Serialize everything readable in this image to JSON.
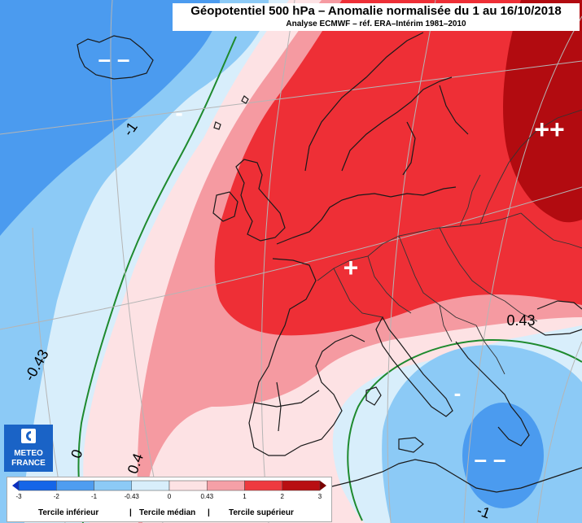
{
  "title": {
    "main": "Géopotentiel 500 hPa – Anomalie normalisée du 1 au 16/10/2018",
    "sub": "Analyse ECMWF – réf. ERA–Intérim 1981–2010"
  },
  "map_labels": {
    "minus_minus_north": "– –",
    "minus_north": "-",
    "plus_center": "+",
    "plus_plus_east": "++",
    "minus_south": "-",
    "minus_minus_south": "– –"
  },
  "contour_labels": {
    "minus1_north": "-1",
    "minus043_west": "-0.43",
    "zero_sw": "0",
    "zero4_sw": "0.4",
    "p043_east": "0.43",
    "minus1_south": "-1"
  },
  "logo": {
    "line1": "METEO",
    "line2": "FRANCE"
  },
  "legend": {
    "ticks": [
      "-3",
      "-2",
      "-1",
      "-0.43",
      "0",
      "0.43",
      "1",
      "2",
      "3"
    ],
    "colors": [
      "#1565e8",
      "#4f9df0",
      "#8ccaf6",
      "#d8eefb",
      "#fde2e4",
      "#f5a0a7",
      "#ee3a3f",
      "#b80f12"
    ],
    "tercile_low": "Tercile inférieur",
    "tercile_mid": "Tercile médian",
    "tercile_high": "Tercile supérieur",
    "separator": "|"
  },
  "colors": {
    "very_low": "#4b9bef",
    "low": "#8ccaf6",
    "near_low": "#d8eefb",
    "near_high": "#fde2e4",
    "high": "#f59aa1",
    "very_high": "#ee2f36",
    "extreme": "#b20b10",
    "zero_contour": "#1e8a2e",
    "coast": "#1a1a1a",
    "grid": "#b5b5b5"
  }
}
